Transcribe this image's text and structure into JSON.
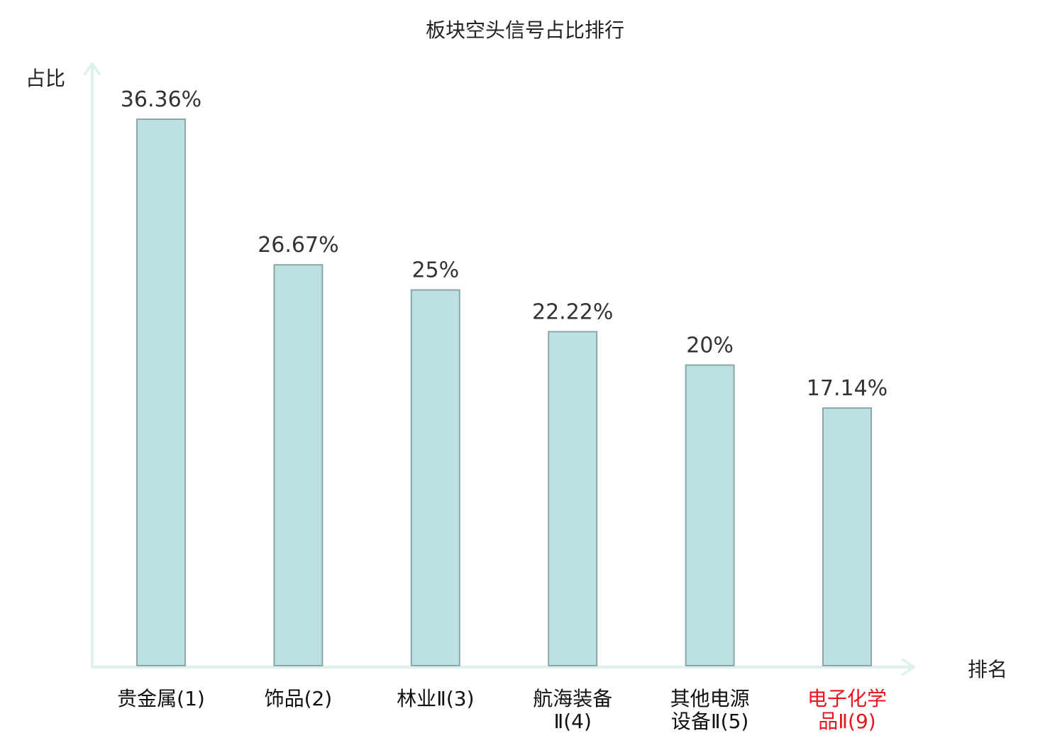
{
  "chart_data": {
    "type": "bar",
    "title": "板块空头信号占比排行",
    "ylabel": "占比",
    "xlabel": "排名",
    "categories": [
      {
        "lines": [
          "贵金属(1)"
        ],
        "highlight": false
      },
      {
        "lines": [
          "饰品(2)"
        ],
        "highlight": false
      },
      {
        "lines": [
          "林业Ⅱ(3)"
        ],
        "highlight": false
      },
      {
        "lines": [
          "航海装备",
          "Ⅱ(4)"
        ],
        "highlight": false
      },
      {
        "lines": [
          "其他电源",
          "设备Ⅱ(5)"
        ],
        "highlight": false
      },
      {
        "lines": [
          "电子化学",
          "品Ⅱ(9)"
        ],
        "highlight": true
      }
    ],
    "values": [
      36.36,
      26.67,
      25,
      22.22,
      20,
      17.14
    ],
    "value_labels": [
      "36.36%",
      "26.67%",
      "25%",
      "22.22%",
      "20%",
      "17.14%"
    ],
    "ylim": [
      0,
      36.36
    ],
    "grid": false,
    "colors": {
      "bar_fill": "#bde0e3",
      "bar_stroke": "#8aa6aa",
      "axis": "#dff1ef",
      "highlight_label": "#e8161b"
    }
  }
}
